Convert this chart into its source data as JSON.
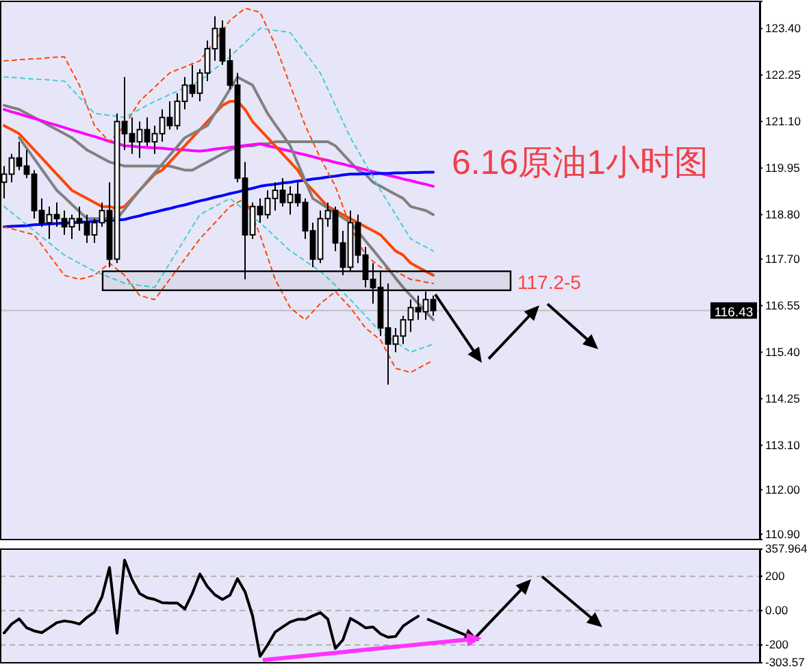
{
  "chart_data": [
    {
      "type": "candlestick",
      "title": "6.16原油1小时图",
      "categories": [
        null,
        null,
        null,
        null,
        null,
        null,
        null,
        null,
        null,
        null,
        null,
        null,
        null,
        null,
        null,
        null,
        null,
        null,
        null,
        null,
        null,
        null,
        null,
        null,
        null,
        null,
        null,
        null,
        null,
        null,
        null,
        null,
        null,
        null,
        null,
        null,
        null,
        null,
        null,
        null,
        null,
        null,
        null,
        null,
        null,
        null,
        null,
        null,
        null,
        null,
        null,
        null,
        null,
        null,
        null,
        null,
        null,
        null
      ],
      "ohlc": [
        [
          119.6,
          120.0,
          119.2,
          119.8
        ],
        [
          119.8,
          120.3,
          119.6,
          120.2
        ],
        [
          120.2,
          120.6,
          119.9,
          120.0
        ],
        [
          120.0,
          120.4,
          119.7,
          119.8
        ],
        [
          119.8,
          119.9,
          118.7,
          118.9
        ],
        [
          118.9,
          119.2,
          118.5,
          118.6
        ],
        [
          118.6,
          119.0,
          118.2,
          118.8
        ],
        [
          118.8,
          119.1,
          118.5,
          118.7
        ],
        [
          118.7,
          118.9,
          118.3,
          118.5
        ],
        [
          118.5,
          118.8,
          118.2,
          118.7
        ],
        [
          118.7,
          119.0,
          118.4,
          118.6
        ],
        [
          118.6,
          118.8,
          118.1,
          118.3
        ],
        [
          118.3,
          118.7,
          118.1,
          118.6
        ],
        [
          118.6,
          119.1,
          118.5,
          118.9
        ],
        [
          118.9,
          119.6,
          117.5,
          117.7
        ],
        [
          117.7,
          121.3,
          117.6,
          121.1
        ],
        [
          121.1,
          122.2,
          120.4,
          120.8
        ],
        [
          120.8,
          121.2,
          120.3,
          120.6
        ],
        [
          120.6,
          121.1,
          120.2,
          120.9
        ],
        [
          120.9,
          121.2,
          120.5,
          120.6
        ],
        [
          120.6,
          121.0,
          120.3,
          120.8
        ],
        [
          120.8,
          121.4,
          120.6,
          121.2
        ],
        [
          121.2,
          121.6,
          120.9,
          121.0
        ],
        [
          121.0,
          121.8,
          120.9,
          121.6
        ],
        [
          121.6,
          122.2,
          121.4,
          122.0
        ],
        [
          122.0,
          122.5,
          121.7,
          121.8
        ],
        [
          121.8,
          122.4,
          121.6,
          122.3
        ],
        [
          122.3,
          123.1,
          122.1,
          122.9
        ],
        [
          122.9,
          123.7,
          122.6,
          123.4
        ],
        [
          123.4,
          123.6,
          122.5,
          122.6
        ],
        [
          122.6,
          122.9,
          121.9,
          122.0
        ],
        [
          122.0,
          122.3,
          119.6,
          119.7
        ],
        [
          119.7,
          120.1,
          117.2,
          118.3
        ],
        [
          118.3,
          119.1,
          118.2,
          119.0
        ],
        [
          119.0,
          119.2,
          118.6,
          118.8
        ],
        [
          118.8,
          119.4,
          118.7,
          119.2
        ],
        [
          119.2,
          119.6,
          118.9,
          119.4
        ],
        [
          119.4,
          119.7,
          119.0,
          119.1
        ],
        [
          119.1,
          119.5,
          118.8,
          119.3
        ],
        [
          119.3,
          119.6,
          119.0,
          119.1
        ],
        [
          119.1,
          119.2,
          118.2,
          118.4
        ],
        [
          118.4,
          118.6,
          117.5,
          117.7
        ],
        [
          117.7,
          118.9,
          117.6,
          118.7
        ],
        [
          118.7,
          119.1,
          118.5,
          118.9
        ],
        [
          118.9,
          119.0,
          117.9,
          118.1
        ],
        [
          118.1,
          118.4,
          117.3,
          117.5
        ],
        [
          117.5,
          118.9,
          117.4,
          118.6
        ],
        [
          118.6,
          118.8,
          117.6,
          117.8
        ],
        [
          117.8,
          118.0,
          117.0,
          117.2
        ],
        [
          117.2,
          117.6,
          116.6,
          117.0
        ],
        [
          117.0,
          117.4,
          115.8,
          116.0
        ],
        [
          116.0,
          117.1,
          114.6,
          115.6
        ],
        [
          115.6,
          116.0,
          115.4,
          115.8
        ],
        [
          115.8,
          116.3,
          115.6,
          116.2
        ],
        [
          116.2,
          116.7,
          115.9,
          116.5
        ],
        [
          116.5,
          116.8,
          116.2,
          116.4
        ],
        [
          116.4,
          116.9,
          116.2,
          116.7
        ],
        [
          116.7,
          116.8,
          116.3,
          116.43
        ]
      ],
      "ylim": [
        110.77,
        124.07
      ],
      "yticks": [
        {
          "value": 123.4,
          "label": "123.40"
        },
        122.25,
        {
          "value": 121.1,
          "label": "121.10"
        },
        119.95,
        {
          "value": 118.8,
          "label": "118.80"
        },
        {
          "value": 117.7,
          "label": "117.70"
        },
        116.55,
        {
          "value": 115.4,
          "label": "115.40"
        },
        114.25,
        {
          "value": 113.1,
          "label": "113.10"
        },
        {
          "value": 112,
          "label": "112.00"
        },
        {
          "value": 110.9,
          "label": "110.90"
        }
      ],
      "series": [
        {
          "type": "line",
          "color": "#808080",
          "line_style": "solid",
          "values": [
            121.5,
            121.45,
            121.4,
            121.3,
            121.2,
            121.1,
            121.0,
            120.9,
            120.8,
            120.7,
            120.55,
            120.4,
            120.3,
            120.2,
            120.1,
            120.05,
            120.0,
            120.0,
            120.0,
            120.0,
            120.0,
            120.0,
            120.0,
            119.95,
            119.9,
            119.9,
            120.0,
            120.1,
            120.2,
            120.3,
            120.4,
            120.45,
            120.5,
            120.5,
            120.55,
            120.55,
            120.6,
            120.6,
            120.6,
            120.6,
            120.6,
            120.6,
            120.6,
            120.6,
            120.5,
            120.3,
            120.1,
            119.9,
            119.8,
            119.6,
            119.5,
            119.4,
            119.3,
            119.2,
            119.0,
            118.95,
            118.9,
            118.8
          ]
        },
        {
          "type": "line",
          "color": "#ff00ff",
          "line_style": "solid",
          "values": [
            121.4,
            121.34,
            121.29,
            121.23,
            121.18,
            121.12,
            121.06,
            121.01,
            120.95,
            120.89,
            120.84,
            120.78,
            120.73,
            120.67,
            120.61,
            120.56,
            120.5,
            120.49,
            120.47,
            120.46,
            120.45,
            120.44,
            120.42,
            120.41,
            120.4,
            120.38,
            120.37,
            120.39,
            120.42,
            120.44,
            120.46,
            120.48,
            120.51,
            120.53,
            120.55,
            120.5,
            120.46,
            120.41,
            120.37,
            120.32,
            120.28,
            120.23,
            120.18,
            120.14,
            120.09,
            120.05,
            120.0,
            119.96,
            119.91,
            119.86,
            119.82,
            119.77,
            119.73,
            119.68,
            119.64,
            119.59,
            119.55,
            119.5
          ]
        },
        {
          "type": "line",
          "color": "#0000ff",
          "line_style": "solid",
          "values": [
            118.5,
            118.51,
            118.52,
            118.53,
            118.55,
            118.56,
            118.57,
            118.58,
            118.59,
            118.6,
            118.61,
            118.62,
            118.64,
            118.65,
            118.66,
            118.67,
            118.68,
            118.73,
            118.77,
            118.82,
            118.86,
            118.91,
            118.95,
            119.0,
            119.04,
            119.09,
            119.14,
            119.18,
            119.23,
            119.27,
            119.32,
            119.36,
            119.41,
            119.45,
            119.5,
            119.53,
            119.55,
            119.58,
            119.6,
            119.63,
            119.65,
            119.68,
            119.7,
            119.73,
            119.75,
            119.78,
            119.8,
            119.8,
            119.81,
            119.81,
            119.82,
            119.82,
            119.83,
            119.83,
            119.84,
            119.84,
            119.85,
            119.85
          ]
        },
        {
          "type": "line",
          "color": "#ff4500",
          "line_style": "solid",
          "values": [
            121.0,
            120.9,
            120.8,
            120.6,
            120.4,
            120.2,
            120.0,
            119.8,
            119.6,
            119.4,
            119.3,
            119.2,
            119.1,
            119.0,
            119.0,
            118.95,
            119.0,
            119.2,
            119.4,
            119.6,
            119.8,
            119.9,
            120.1,
            120.3,
            120.5,
            120.7,
            120.9,
            121.1,
            121.3,
            121.5,
            121.6,
            121.6,
            121.4,
            121.1,
            120.9,
            120.7,
            120.5,
            120.3,
            120.1,
            119.9,
            119.6,
            119.4,
            119.2,
            119.0,
            118.9,
            118.8,
            118.7,
            118.6,
            118.5,
            118.4,
            118.3,
            118.1,
            117.9,
            117.8,
            117.6,
            117.5,
            117.4,
            117.3
          ]
        },
        {
          "type": "line",
          "color": "#808080",
          "line_style": "solid",
          "values": [
            null,
            null,
            120.7,
            120.44,
            120.18,
            119.92,
            119.66,
            119.4,
            119.23,
            119.05,
            118.88,
            118.7,
            118.7,
            118.7,
            118.7,
            118.7,
            118.93,
            119.17,
            119.4,
            119.62,
            119.83,
            120.05,
            120.27,
            120.48,
            120.7,
            120.8,
            120.9,
            121.0,
            121.3,
            121.6,
            121.9,
            122.2,
            122.1,
            122.0,
            121.65,
            121.3,
            121.03,
            120.77,
            120.5,
            120.07,
            119.63,
            119.2,
            119.08,
            118.96,
            118.84,
            118.72,
            118.6,
            118.38,
            118.15,
            117.93,
            117.7,
            117.47,
            117.23,
            117.0,
            116.8,
            116.6,
            116.4,
            116.2
          ]
        },
        {
          "type": "line",
          "color": "#ff4500",
          "line_style": "dashed",
          "values": [
            122.6,
            122.61,
            122.63,
            122.64,
            122.65,
            122.66,
            122.68,
            122.69,
            122.7,
            122.35,
            122.0,
            121.5,
            121.0,
            120.8,
            120.6,
            120.8,
            121.0,
            121.3,
            121.6,
            121.78,
            121.95,
            122.13,
            122.3,
            122.38,
            122.45,
            122.53,
            122.6,
            122.85,
            123.1,
            123.35,
            123.6,
            123.75,
            123.9,
            123.85,
            123.8,
            123.4,
            123.0,
            122.5,
            122.0,
            121.5,
            121.0,
            120.6,
            120.2,
            119.85,
            119.5,
            119.0,
            118.5,
            118.15,
            117.8,
            117.65,
            117.5,
            117.45,
            117.4,
            117.3,
            117.2,
            117.17,
            117.13,
            117.1
          ]
        },
        {
          "type": "line",
          "color": "#ff4500",
          "line_style": "dashed",
          "values": [
            118.5,
            118.45,
            118.4,
            118.35,
            118.3,
            118.05,
            117.8,
            117.55,
            117.3,
            117.25,
            117.2,
            117.25,
            117.3,
            117.45,
            117.6,
            117.45,
            117.3,
            117.05,
            116.8,
            116.75,
            116.7,
            116.95,
            117.2,
            117.45,
            117.7,
            117.95,
            118.2,
            118.4,
            118.6,
            118.8,
            119.0,
            119.1,
            119.2,
            118.75,
            118.3,
            117.75,
            117.2,
            116.85,
            116.5,
            116.35,
            116.2,
            116.4,
            116.6,
            116.75,
            116.9,
            116.7,
            116.5,
            116.25,
            116.0,
            115.85,
            115.7,
            115.35,
            115.0,
            114.95,
            114.9,
            115.0,
            115.1,
            115.2
          ]
        },
        {
          "type": "line",
          "color": "#40d0d0",
          "line_style": "dashed",
          "values": [
            122.2,
            122.19,
            122.18,
            122.16,
            122.15,
            122.14,
            122.13,
            122.11,
            122.1,
            121.9,
            121.7,
            121.5,
            121.3,
            121.28,
            121.25,
            121.23,
            121.2,
            121.3,
            121.4,
            121.5,
            121.6,
            121.68,
            121.77,
            121.85,
            121.93,
            122.02,
            122.1,
            122.25,
            122.4,
            122.55,
            122.7,
            122.88,
            123.05,
            123.23,
            123.4,
            123.38,
            123.35,
            123.33,
            123.3,
            123.05,
            122.8,
            122.55,
            122.3,
            121.9,
            121.5,
            121.1,
            120.7,
            120.38,
            120.05,
            119.73,
            119.4,
            119.1,
            118.8,
            118.5,
            118.2,
            118.1,
            118.0,
            117.9
          ]
        },
        {
          "type": "line",
          "color": "#40d0d0",
          "line_style": "dashed",
          "values": [
            119.0,
            118.85,
            118.7,
            118.55,
            118.4,
            118.25,
            118.1,
            117.95,
            117.8,
            117.7,
            117.6,
            117.5,
            117.4,
            117.33,
            117.25,
            117.18,
            117.1,
            117.08,
            117.05,
            117.03,
            117.0,
            117.3,
            117.6,
            117.9,
            118.2,
            118.5,
            118.8,
            118.9,
            119.0,
            119.1,
            119.2,
            119.05,
            118.9,
            118.75,
            118.6,
            118.43,
            118.25,
            118.08,
            117.9,
            117.78,
            117.65,
            117.53,
            117.4,
            117.23,
            117.05,
            116.88,
            116.7,
            116.5,
            116.3,
            116.1,
            115.9,
            115.78,
            115.65,
            115.53,
            115.4,
            115.47,
            115.53,
            115.6
          ]
        }
      ],
      "bands": [
        {
          "axis": "y",
          "from": 116.93,
          "to": 117.4,
          "label": "117.2-5",
          "color": "#000000"
        }
      ],
      "ref_lines": [
        {
          "axis": "y",
          "value": 116.43,
          "label": "116.43",
          "color": "#c0c0c0"
        }
      ]
    },
    {
      "type": "line",
      "color": "#000000",
      "categories": [
        null,
        null,
        null,
        null,
        null,
        null,
        null,
        null,
        null,
        null,
        null,
        null,
        null,
        null,
        null,
        null,
        null,
        null,
        null,
        null,
        null,
        null,
        null,
        null,
        null,
        null,
        null,
        null,
        null,
        null,
        null,
        null,
        null,
        null,
        null,
        null,
        null,
        null,
        null,
        null,
        null,
        null,
        null,
        null,
        null,
        null,
        null,
        null,
        null,
        null,
        null,
        null,
        null,
        null,
        null,
        null,
        null,
        null
      ],
      "values": [
        -130,
        -78,
        -48,
        -100,
        -118,
        -128,
        -100,
        -70,
        -60,
        -66,
        -78,
        -40,
        -8,
        80,
        251,
        -131,
        294,
        180,
        100,
        75,
        65,
        46,
        44,
        44,
        10,
        100,
        213,
        140,
        92,
        65,
        90,
        186,
        110,
        -30,
        -266,
        -200,
        -125,
        -95,
        -66,
        -51,
        -51,
        -30,
        -12,
        -50,
        -220,
        -170,
        -45,
        -70,
        -100,
        -95,
        -135,
        -155,
        -150,
        -90,
        -60,
        -33,
        null,
        null
      ],
      "ylim": [
        -303.57,
        357.964
      ],
      "yticks": [
        357.964,
        200,
        {
          "value": 0,
          "label": "0.00"
        },
        -200,
        -303.57
      ],
      "grid": "y"
    }
  ]
}
